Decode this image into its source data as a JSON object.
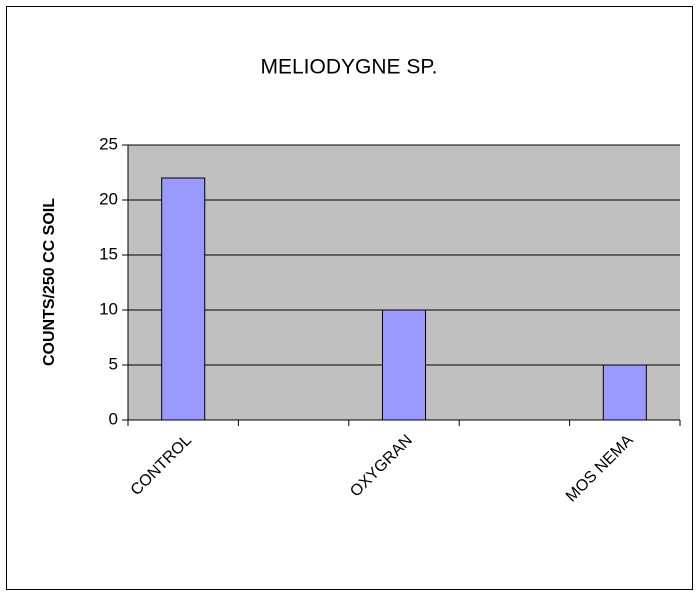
{
  "chart_data": {
    "type": "bar",
    "title": "MELIODYGNE SP.",
    "y_label": "COUNTS/250 CC SOIL",
    "categories": [
      "CONTROL",
      null,
      "OXYGRAN",
      null,
      "MOS NEMA"
    ],
    "values": [
      22,
      null,
      10,
      null,
      5
    ],
    "color": "#9999ff",
    "ylim": [
      0,
      25
    ],
    "yticks": [
      0,
      5,
      10,
      15,
      20,
      25
    ],
    "grid": true,
    "plot_background": "#c0c0c0"
  }
}
